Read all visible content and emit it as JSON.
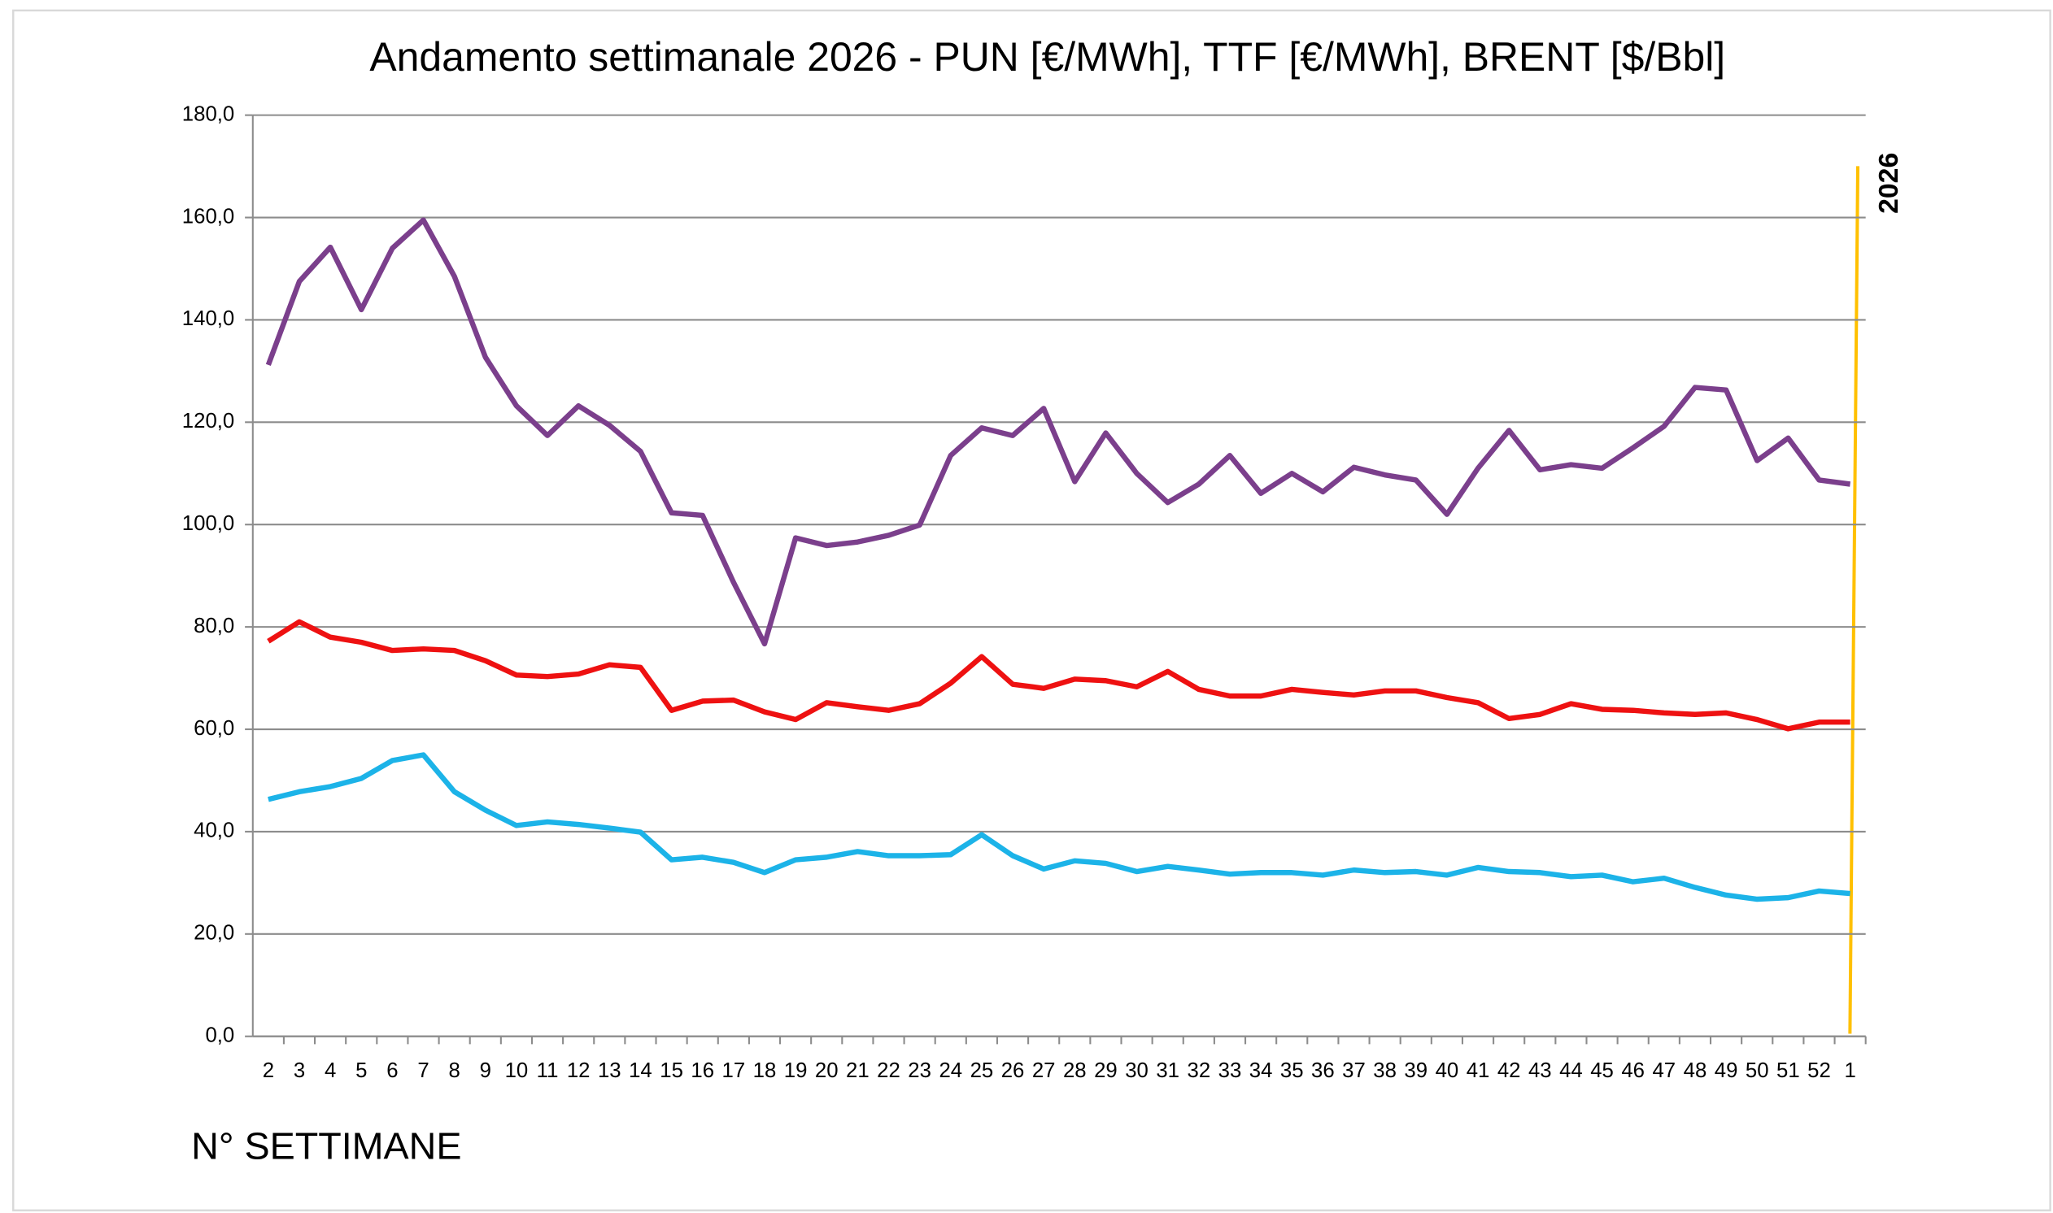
{
  "chart_data": {
    "type": "line",
    "title": "Andamento settimanale 2026 - PUN [€/MWh], TTF [€/MWh], BRENT [$/Bbl]",
    "x_label": "N° SETTIMANE",
    "annotation": "2026",
    "categories": [
      "2",
      "3",
      "4",
      "5",
      "6",
      "7",
      "8",
      "9",
      "10",
      "11",
      "12",
      "13",
      "14",
      "15",
      "16",
      "17",
      "18",
      "19",
      "20",
      "21",
      "22",
      "23",
      "24",
      "25",
      "26",
      "27",
      "28",
      "29",
      "30",
      "31",
      "32",
      "33",
      "34",
      "35",
      "36",
      "37",
      "38",
      "39",
      "40",
      "41",
      "42",
      "43",
      "44",
      "45",
      "46",
      "47",
      "48",
      "49",
      "50",
      "51",
      "52",
      "1"
    ],
    "series": [
      {
        "color": "#7b3f8c",
        "values": [
          131.2,
          147.5,
          154.2,
          142,
          154,
          159.5,
          148.5,
          132.7,
          123.2,
          117.4,
          123.2,
          119.4,
          114.3,
          102.3,
          101.8,
          88.7,
          76.7,
          97.4,
          95.9,
          96.6,
          97.9,
          99.9,
          113.5,
          118.9,
          117.4,
          122.7,
          108.4,
          117.9,
          110,
          104.3,
          107.9,
          113.5,
          106.1,
          110,
          106.4,
          111.2,
          109.7,
          108.7,
          102,
          111,
          118.4,
          110.7,
          111.7,
          111,
          115,
          119.2,
          126.8,
          126.3,
          112.5,
          116.9,
          108.7,
          107.9
        ]
      },
      {
        "color": "#ee1111",
        "values": [
          77.2,
          81,
          78,
          77,
          75.4,
          75.7,
          75.4,
          73.4,
          70.6,
          70.3,
          70.8,
          72.6,
          72.1,
          63.7,
          65.5,
          65.7,
          63.4,
          61.9,
          65.2,
          64.4,
          63.7,
          65,
          69,
          74.2,
          68.8,
          68,
          69.8,
          69.5,
          68.3,
          71.3,
          67.8,
          66.5,
          66.5,
          67.8,
          67.2,
          66.7,
          67.5,
          67.5,
          66.2,
          65.2,
          62.1,
          62.9,
          65,
          63.9,
          63.7,
          63.2,
          62.9,
          63.2,
          61.9,
          60.1,
          61.4,
          61.4
        ]
      },
      {
        "color": "#1cb3e8",
        "values": [
          46.3,
          47.8,
          48.8,
          50.4,
          53.9,
          55,
          47.8,
          44.2,
          41.2,
          41.9,
          41.4,
          40.7,
          39.9,
          34.5,
          35,
          34,
          32,
          34.5,
          35,
          36.1,
          35.3,
          35.3,
          35.5,
          39.4,
          35.3,
          32.7,
          34.3,
          33.8,
          32.2,
          33.2,
          32.5,
          31.7,
          32,
          32,
          31.5,
          32.5,
          32,
          32.2,
          31.5,
          33,
          32.2,
          32,
          31.2,
          31.5,
          30.2,
          30.9,
          29.1,
          27.6,
          26.8,
          27.1,
          28.4,
          27.9
        ]
      }
    ],
    "ylim": [
      0,
      180
    ],
    "yticks": [
      {
        "value": 0,
        "label": "0,0"
      },
      {
        "value": 20,
        "label": "20,0"
      },
      {
        "value": 40,
        "label": "40,0"
      },
      {
        "value": 60,
        "label": "60,0"
      },
      {
        "value": 80,
        "label": "80,0"
      },
      {
        "value": 100,
        "label": "100,0"
      },
      {
        "value": 120,
        "label": "120,0"
      },
      {
        "value": 140,
        "label": "140,0"
      },
      {
        "value": 160,
        "label": "160,0"
      },
      {
        "value": 180,
        "label": "180,0"
      }
    ],
    "grid": true
  }
}
